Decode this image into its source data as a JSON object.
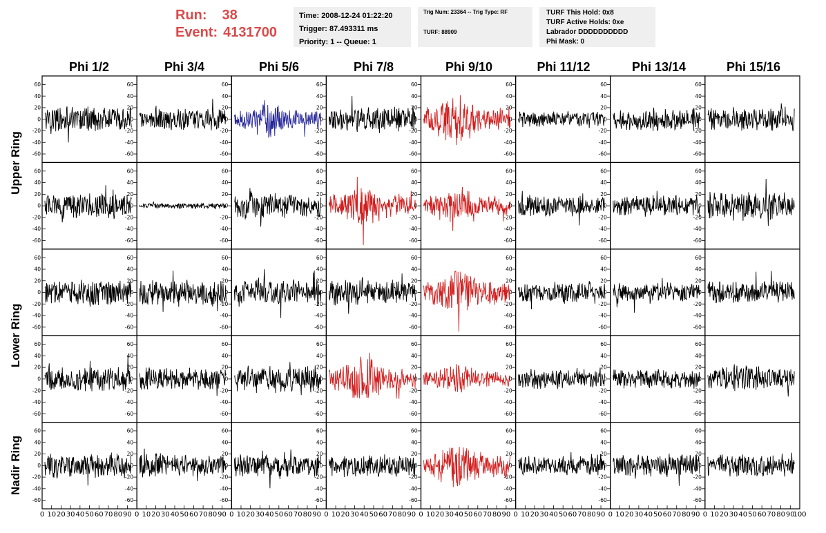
{
  "header": {
    "run_label": "Run:",
    "run_value": "38",
    "event_label": "Event:",
    "event_value": "4131700"
  },
  "info_box_1": {
    "time": "Time: 2008-12-24 01:22:20",
    "trigger": "Trigger: 87.493311 ms",
    "priority": "Priority: 1 -- Queue: 1"
  },
  "info_box_2": {
    "trig": "Trig Num: 23364 -- Trig Type: RF",
    "turf": "TURF: 88909"
  },
  "info_box_3": {
    "hold": "TURF This Hold: 0x8",
    "active_holds": "TURF Active Holds: 0xe",
    "labrador": "Labrador DDDDDDDDDD",
    "phi_mask": "Phi Mask: 0"
  },
  "columns": [
    "Phi 1/2",
    "Phi 3/4",
    "Phi 5/6",
    "Phi 7/8",
    "Phi 9/10",
    "Phi 11/12",
    "Phi 13/14",
    "Phi 15/16"
  ],
  "rows": [
    "Upper Ring",
    "Upper Ring",
    "Lower Ring",
    "Lower Ring",
    "Nadir Ring"
  ],
  "row_labels": {
    "upper": "Upper Ring",
    "lower": "Lower Ring",
    "nadir": "Nadir Ring"
  },
  "colors": {
    "title_red": "#d94b4b",
    "trace_default": "#000000",
    "trace_red": "#d11f1f",
    "trace_blue": "#26269a",
    "box_background": "#efefef"
  },
  "chart_data": {
    "type": "line",
    "x_range": [
      0,
      100
    ],
    "y_range": [
      -70,
      70
    ],
    "y_ticks": [
      -60,
      -40,
      -20,
      0,
      20,
      40,
      60
    ],
    "y_tick_labels": [
      "-60",
      "-40",
      "-20",
      "0",
      "20",
      "40",
      "60"
    ],
    "x_ticks": [
      0,
      10,
      20,
      30,
      40,
      50,
      60,
      70,
      80,
      90,
      100
    ],
    "x_tick_labels": [
      "0",
      "10",
      "20",
      "30",
      "40",
      "50",
      "60",
      "70",
      "80",
      "90",
      "100"
    ],
    "panel_styles": [
      [
        "black",
        "black",
        "blue",
        "black",
        "red",
        "black",
        "black",
        "black"
      ],
      [
        "black",
        "black",
        "black",
        "red",
        "red",
        "black",
        "black",
        "black"
      ],
      [
        "black",
        "black",
        "black",
        "black",
        "red",
        "black",
        "black",
        "black"
      ],
      [
        "black",
        "black",
        "black",
        "red",
        "red",
        "black",
        "black",
        "black"
      ],
      [
        "black",
        "black",
        "black",
        "black",
        "red",
        "black",
        "black",
        "black"
      ]
    ],
    "panel_amplitudes": [
      [
        18,
        16,
        20,
        18,
        26,
        12,
        16,
        18
      ],
      [
        18,
        4,
        20,
        24,
        20,
        14,
        16,
        20
      ],
      [
        18,
        20,
        20,
        18,
        24,
        14,
        14,
        16
      ],
      [
        18,
        16,
        20,
        24,
        16,
        14,
        14,
        18
      ],
      [
        18,
        16,
        16,
        16,
        26,
        14,
        16,
        16
      ]
    ],
    "series_style": "waveform traces, one per panel"
  }
}
